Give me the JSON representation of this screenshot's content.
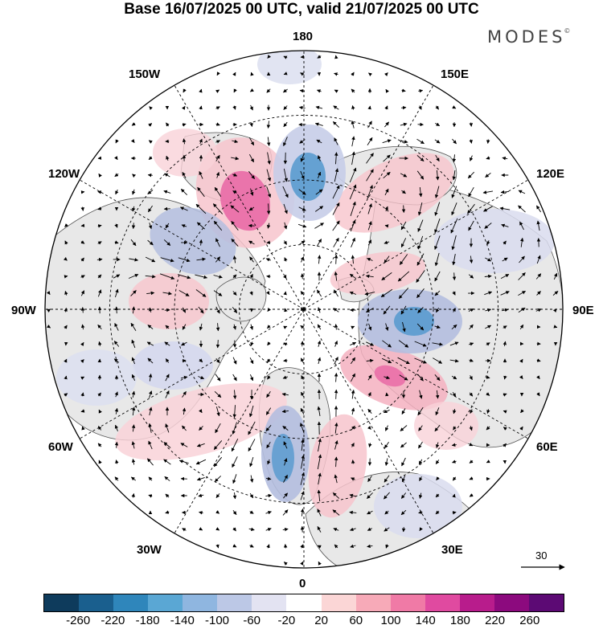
{
  "title": "Base 16/07/2025 00 UTC, valid 21/07/2025 00 UTC",
  "brand": "MODES",
  "brand_mark": "©",
  "longitude_labels": {
    "n180": "180",
    "w150": "150W",
    "e150": "150E",
    "w120": "120W",
    "e120": "120E",
    "w90": "90W",
    "e90": "90E",
    "w60": "60W",
    "e60": "60E",
    "w30": "30W",
    "e30": "30E",
    "s0": "0"
  },
  "colorbar": {
    "colors": [
      "#0e3b5c",
      "#1a5f8e",
      "#2f86bb",
      "#5aa7d4",
      "#8fb6e0",
      "#bcc8e6",
      "#e3e3f2",
      "#ffffff",
      "#fbd6d6",
      "#f7aab8",
      "#f07aa6",
      "#e04aa0",
      "#b81c8c",
      "#8c0a7e",
      "#5c0a74"
    ],
    "tick_labels": [
      "-260",
      "-220",
      "-180",
      "-140",
      "-100",
      "-60",
      "-20",
      "20",
      "60",
      "100",
      "140",
      "180",
      "220",
      "260"
    ]
  },
  "reference_vector": {
    "label": "30",
    "icon": "arrow-right-icon"
  },
  "map": {
    "projection": "north polar stereographic",
    "field_colors": {
      "positive": "#f1a5b5",
      "strong_positive": "#e0559c",
      "negative": "#9fb0dc",
      "strong_negative": "#4b8fc6",
      "land": "#e8e8e8"
    }
  }
}
